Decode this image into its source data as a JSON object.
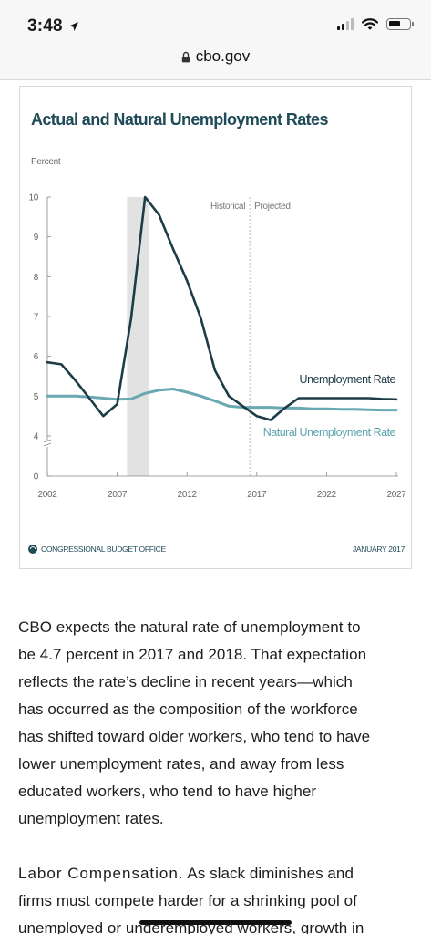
{
  "status_bar": {
    "time": "3:48",
    "location_icon": "location-arrow-icon",
    "signal_icon": "cellular-signal-icon",
    "wifi_icon": "wifi-icon",
    "battery_icon": "battery-icon"
  },
  "browser": {
    "url": "cbo.gov",
    "lock_icon": "lock-icon"
  },
  "figure": {
    "footer_org": "CONGRESSIONAL BUDGET OFFICE",
    "footer_date": "JANUARY 2017",
    "footer_logo_icon": "cbo-logo-icon"
  },
  "chart_data": {
    "type": "line",
    "title": "Actual and Natural Unemployment Rates",
    "ylabel": "Percent",
    "xlabel": "",
    "xlim": [
      2002,
      2027
    ],
    "ylim": [
      0,
      10
    ],
    "x_ticks": [
      "2002",
      "2007",
      "2012",
      "2017",
      "2022",
      "2027"
    ],
    "y_ticks": [
      "0",
      "4",
      "5",
      "6",
      "7",
      "8",
      "9",
      "10"
    ],
    "y_axis_break": [
      0,
      4
    ],
    "period_labels": [
      "Historical",
      "Projected"
    ],
    "projection_start": 2016.5,
    "recession_shade": [
      2007.7,
      2009.3
    ],
    "series": [
      {
        "name": "Unemployment Rate",
        "color": "#1c3c47",
        "x": [
          2002,
          2003,
          2004,
          2005,
          2006,
          2007,
          2008,
          2009,
          2010,
          2011,
          2012,
          2013,
          2014,
          2015,
          2016,
          2017,
          2018,
          2019,
          2020,
          2021,
          2022,
          2023,
          2024,
          2025,
          2026,
          2027
        ],
        "values": [
          5.85,
          5.8,
          5.4,
          4.95,
          4.5,
          4.8,
          6.95,
          10.0,
          9.55,
          8.7,
          7.9,
          6.95,
          5.65,
          5.0,
          4.75,
          4.5,
          4.4,
          4.7,
          4.95,
          4.95,
          4.95,
          4.95,
          4.95,
          4.95,
          4.93,
          4.92
        ]
      },
      {
        "name": "Natural Unemployment Rate",
        "color": "#6aa9b3",
        "x": [
          2002,
          2003,
          2004,
          2005,
          2006,
          2007,
          2008,
          2009,
          2010,
          2011,
          2012,
          2013,
          2014,
          2015,
          2016,
          2017,
          2018,
          2019,
          2020,
          2021,
          2022,
          2023,
          2024,
          2025,
          2026,
          2027
        ],
        "values": [
          5.0,
          5.0,
          5.0,
          4.98,
          4.95,
          4.92,
          4.93,
          5.07,
          5.15,
          5.18,
          5.1,
          5.0,
          4.88,
          4.75,
          4.72,
          4.72,
          4.72,
          4.7,
          4.7,
          4.68,
          4.68,
          4.67,
          4.67,
          4.66,
          4.65,
          4.65
        ]
      }
    ]
  },
  "article": {
    "para1_lines": [
      "CBO expects the natural rate of unemployment to",
      "be 4.7 percent in 2017 and 2018. That expectation",
      "reflects the rate’s decline in recent years—which",
      "has occurred as the composition of the workforce",
      "has shifted toward older workers, who tend to have",
      "lower unemployment rates, and away from less",
      "educated workers, who tend to have higher",
      "unemployment rates."
    ],
    "para2_heading": "Labor Compensation.",
    "para2_line1_rest": " As slack diminishes and",
    "para2_lines": [
      "firms must compete harder for a shrinking pool of",
      "unemployed or underemployed workers, growth in"
    ]
  }
}
